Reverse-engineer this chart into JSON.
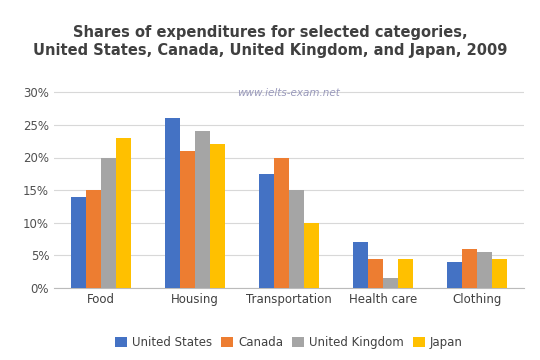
{
  "title": "Shares of expenditures for selected categories,\nUnited States, Canada, United Kingdom, and Japan, 2009",
  "watermark": "www.ielts-exam.net",
  "categories": [
    "Food",
    "Housing",
    "Transportation",
    "Health care",
    "Clothing"
  ],
  "countries": [
    "United States",
    "Canada",
    "United Kingdom",
    "Japan"
  ],
  "values": {
    "United States": [
      14,
      26,
      17.5,
      7,
      4
    ],
    "Canada": [
      15,
      21,
      20,
      4.5,
      6
    ],
    "United Kingdom": [
      20,
      24,
      15,
      1.5,
      5.5
    ],
    "Japan": [
      23,
      22,
      10,
      4.5,
      4.5
    ]
  },
  "colors": {
    "United States": "#4472C4",
    "Canada": "#ED7D31",
    "United Kingdom": "#A5A5A5",
    "Japan": "#FFC000"
  },
  "ylim": [
    0,
    32
  ],
  "yticks": [
    0,
    5,
    10,
    15,
    20,
    25,
    30
  ],
  "ytick_labels": [
    "0%",
    "5%",
    "10%",
    "15%",
    "20%",
    "25%",
    "30%"
  ],
  "background_color": "#ffffff",
  "grid_color": "#d8d8d8",
  "title_fontsize": 10.5,
  "title_color": "#404040",
  "watermark_color": "#9999bb",
  "watermark_fontsize": 7.5,
  "legend_fontsize": 8.5,
  "tick_fontsize": 8.5,
  "bar_width": 0.16
}
